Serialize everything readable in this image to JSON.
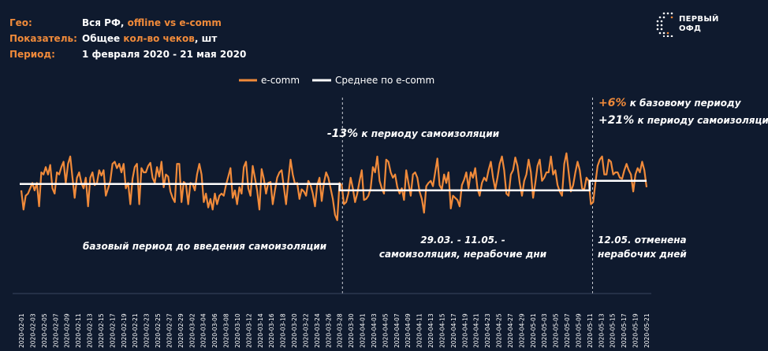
{
  "meta": {
    "geo_key": "Гео:",
    "geo_value_a": "Вся РФ,",
    "geo_value_b": "offline vs e-comm",
    "metric_key": "Показатель:",
    "metric_value_a": "Общее",
    "metric_value_b": "кол-во чеков",
    "metric_value_c": ", шт",
    "period_key": "Период:",
    "period_value": "1 февраля 2020 - 21 мая 2020"
  },
  "logo": {
    "line1": "ПЕРВЫЙ",
    "line2": "ОФД"
  },
  "colors": {
    "background": "#0f1a2e",
    "accent": "#f08a3a",
    "average": "#ffffff",
    "divider": "#c8ccd4"
  },
  "annotations": {
    "period1": "базовый период до введения самоизоляции",
    "period2_change_value": "-13%",
    "period2_change_text": "к периоду самоизоляции",
    "period2_line1": "29.03. - 11.05. -",
    "period2_line2": "самоизоляция, нерабочие дни",
    "period3_change1_value": "+6%",
    "period3_change1_text": "к базовому периоду",
    "period3_change2_value": "+21%",
    "period3_change2_text": "к периоду самоизоляции",
    "period3_line1": "12.05. отменена",
    "period3_line2": "нерабочих дней"
  },
  "chart_data": {
    "type": "line",
    "legend_position": "top-center",
    "grid": false,
    "x_labels": [
      "2020-02-01",
      "2020-02-03",
      "2020-02-05",
      "2020-02-07",
      "2020-02-09",
      "2020-02-11",
      "2020-02-13",
      "2020-02-15",
      "2020-02-17",
      "2020-02-19",
      "2020-02-21",
      "2020-02-23",
      "2020-02-25",
      "2020-02-27",
      "2020-02-29",
      "2020-03-02",
      "2020-03-04",
      "2020-03-06",
      "2020-03-08",
      "2020-03-10",
      "2020-03-12",
      "2020-03-14",
      "2020-03-16",
      "2020-03-18",
      "2020-03-20",
      "2020-03-22",
      "2020-03-24",
      "2020-03-26",
      "2020-03-28",
      "2020-03-30",
      "2020-04-01",
      "2020-04-03",
      "2020-04-05",
      "2020-04-07",
      "2020-04-09",
      "2020-04-11",
      "2020-04-13",
      "2020-04-15",
      "2020-04-17",
      "2020-04-19",
      "2020-04-21",
      "2020-04-23",
      "2020-04-25",
      "2020-04-27",
      "2020-04-29",
      "2020-05-01",
      "2020-05-03",
      "2020-05-05",
      "2020-05-07",
      "2020-05-09",
      "2020-05-11",
      "2020-05-13",
      "2020-05-15",
      "2020-05-17",
      "2020-05-19",
      "2020-05-21"
    ],
    "dividers": [
      "2020-03-29",
      "2020-05-12"
    ],
    "ylim": [
      0,
      100
    ],
    "series": [
      {
        "name": "e-comm",
        "color": "#f08a3a",
        "values": [
          43,
          25,
          38,
          40,
          45,
          50,
          43,
          50,
          28,
          60,
          58,
          65,
          58,
          67,
          45,
          40,
          60,
          58,
          65,
          70,
          50,
          68,
          75,
          55,
          36,
          55,
          60,
          50,
          45,
          55,
          28,
          55,
          60,
          48,
          50,
          62,
          57,
          62,
          38,
          45,
          52,
          68,
          70,
          64,
          68,
          60,
          68,
          45,
          50,
          30,
          54,
          65,
          68,
          30,
          64,
          60,
          60,
          66,
          69,
          55,
          50,
          65,
          56,
          70,
          46,
          58,
          56,
          42,
          36,
          32,
          68,
          68,
          32,
          51,
          49,
          30,
          50,
          49,
          43,
          58,
          68,
          58,
          32,
          40,
          27,
          35,
          25,
          40,
          30,
          38,
          40,
          38,
          48,
          56,
          64,
          36,
          43,
          30,
          46,
          40,
          65,
          70,
          45,
          38,
          66,
          55,
          43,
          25,
          63,
          54,
          40,
          50,
          51,
          30,
          43,
          55,
          60,
          62,
          46,
          30,
          52,
          72,
          58,
          49,
          50,
          35,
          44,
          42,
          38,
          52,
          48,
          40,
          28,
          48,
          55,
          33,
          50,
          60,
          55,
          45,
          35,
          20,
          15,
          50,
          48,
          30,
          32,
          40,
          55,
          45,
          32,
          40,
          52,
          62,
          34,
          35,
          38,
          45,
          65,
          60,
          75,
          52,
          45,
          40,
          72,
          70,
          60,
          55,
          58,
          46,
          40,
          45,
          34,
          62,
          50,
          38,
          58,
          60,
          55,
          42,
          35,
          22,
          47,
          50,
          52,
          47,
          60,
          73,
          48,
          44,
          58,
          50,
          60,
          26,
          38,
          36,
          34,
          28,
          48,
          53,
          60,
          45,
          60,
          55,
          64,
          45,
          38,
          50,
          55,
          52,
          62,
          70,
          55,
          44,
          55,
          68,
          75,
          62,
          40,
          38,
          58,
          62,
          74,
          66,
          50,
          38,
          52,
          58,
          72,
          60,
          36,
          50,
          66,
          72,
          52,
          55,
          60,
          60,
          75,
          58,
          62,
          48,
          42,
          38,
          68,
          78,
          60,
          42,
          48,
          60,
          70,
          62,
          45,
          44,
          55,
          52,
          30,
          32,
          50,
          66,
          72,
          75,
          58,
          58,
          72,
          70,
          58,
          60,
          60,
          55,
          54,
          62,
          68,
          62,
          58,
          42,
          58,
          64,
          60,
          70,
          62,
          46
        ]
      },
      {
        "name": "Среднее по e-comm",
        "color": "#ffffff",
        "segments": [
          {
            "from": "2020-02-01",
            "to": "2020-03-28",
            "value": 49
          },
          {
            "from": "2020-03-29",
            "to": "2020-05-11",
            "value": 43
          },
          {
            "from": "2020-05-12",
            "to": "2020-05-21",
            "value": 52
          }
        ]
      }
    ]
  }
}
